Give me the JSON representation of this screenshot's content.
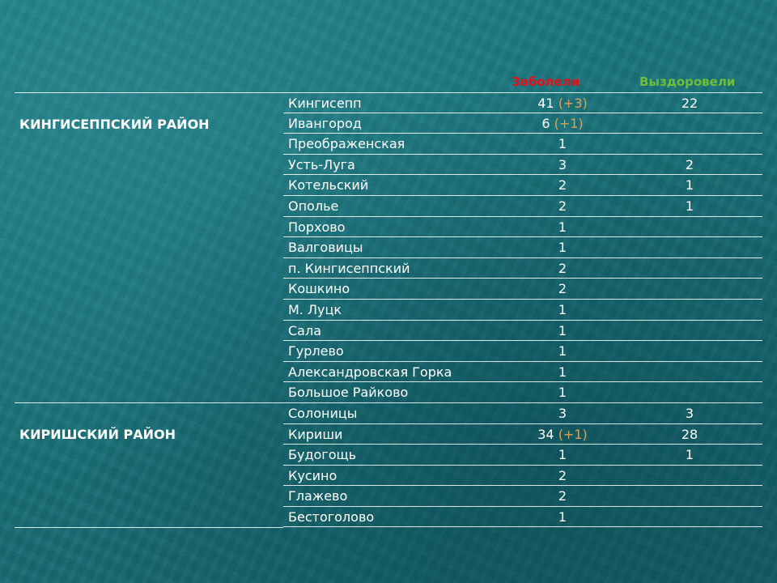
{
  "header": {
    "sick": "Заболели",
    "recovered": "Выздоровели"
  },
  "districts": [
    {
      "name": "КИНГИСЕППСКИЙ РАЙОН",
      "rows": [
        {
          "name": "Кингисепп",
          "sick": "41",
          "delta": "(+3)",
          "recovered": "22"
        },
        {
          "name": "Ивангород",
          "sick": "6",
          "delta": "(+1)",
          "recovered": ""
        },
        {
          "name": "Преображенская",
          "sick": "1",
          "delta": "",
          "recovered": ""
        },
        {
          "name": "Усть-Луга",
          "sick": "3",
          "delta": "",
          "recovered": "2"
        },
        {
          "name": "Котельский",
          "sick": "2",
          "delta": "",
          "recovered": "1"
        },
        {
          "name": "Ополье",
          "sick": "2",
          "delta": "",
          "recovered": "1"
        },
        {
          "name": "Порхово",
          "sick": "1",
          "delta": "",
          "recovered": ""
        },
        {
          "name": "Валговицы",
          "sick": "1",
          "delta": "",
          "recovered": ""
        },
        {
          "name": "п. Кингисеппский",
          "sick": "2",
          "delta": "",
          "recovered": ""
        },
        {
          "name": "Кошкино",
          "sick": "2",
          "delta": "",
          "recovered": ""
        },
        {
          "name": "М. Луцк",
          "sick": "1",
          "delta": "",
          "recovered": ""
        },
        {
          "name": "Сала",
          "sick": "1",
          "delta": "",
          "recovered": ""
        },
        {
          "name": "Гурлево",
          "sick": "1",
          "delta": "",
          "recovered": ""
        },
        {
          "name": "Александровская Горка",
          "sick": "1",
          "delta": "",
          "recovered": ""
        },
        {
          "name": "Большое Райково",
          "sick": "1",
          "delta": "",
          "recovered": ""
        }
      ]
    },
    {
      "name": "КИРИШСКИЙ РАЙОН",
      "rows": [
        {
          "name": "Солоницы",
          "sick": "3",
          "delta": "",
          "recovered": "3"
        },
        {
          "name": "Кириши",
          "sick": "34",
          "delta": "(+1)",
          "recovered": "28"
        },
        {
          "name": "Будогощь",
          "sick": "1",
          "delta": "",
          "recovered": "1"
        },
        {
          "name": "Кусино",
          "sick": "2",
          "delta": "",
          "recovered": ""
        },
        {
          "name": "Глажево",
          "sick": "2",
          "delta": "",
          "recovered": ""
        },
        {
          "name": "Бестоголово",
          "sick": "1",
          "delta": "",
          "recovered": ""
        }
      ]
    }
  ]
}
